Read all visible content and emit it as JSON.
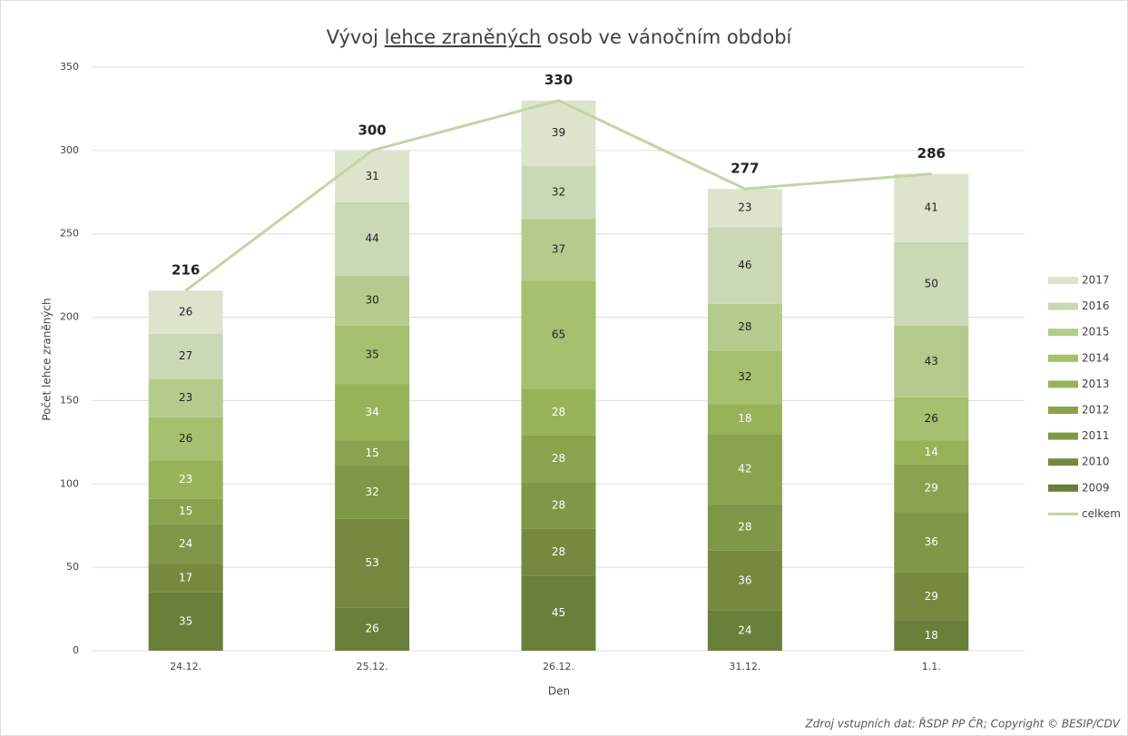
{
  "chart_data": {
    "type": "stacked-bar-line",
    "title": [
      "Vývoj ",
      "lehce zraněných",
      " osob ve vánočním období"
    ],
    "x_label": "Den",
    "y_label": "Počet lehce zraněných",
    "source": "Zdroj vstupních dat: ŘSDP PP ČR; Copyright © BESIP/CDV",
    "categories": [
      "24.12.",
      "25.12.",
      "26.12.",
      "31.12.",
      "1.1."
    ],
    "series": [
      {
        "name": "2009",
        "color": "#6a7f39",
        "label_color": "#ffffff",
        "values": [
          35,
          26,
          45,
          24,
          18
        ]
      },
      {
        "name": "2010",
        "color": "#76893f",
        "label_color": "#ffffff",
        "values": [
          17,
          53,
          28,
          36,
          29
        ]
      },
      {
        "name": "2011",
        "color": "#7f9747",
        "label_color": "#ffffff",
        "values": [
          24,
          32,
          28,
          28,
          36
        ]
      },
      {
        "name": "2012",
        "color": "#89a34f",
        "label_color": "#ffffff",
        "values": [
          15,
          15,
          28,
          42,
          29
        ]
      },
      {
        "name": "2013",
        "color": "#97b35a",
        "label_color": "#ffffff",
        "values": [
          23,
          34,
          28,
          18,
          14
        ]
      },
      {
        "name": "2014",
        "color": "#a5c06f",
        "label_color": "#222222",
        "values": [
          26,
          35,
          65,
          32,
          26
        ]
      },
      {
        "name": "2015",
        "color": "#b5cb8d",
        "label_color": "#222222",
        "values": [
          23,
          30,
          37,
          28,
          43
        ]
      },
      {
        "name": "2016",
        "color": "#cbd8b5",
        "label_color": "#222222",
        "values": [
          27,
          44,
          32,
          46,
          50
        ]
      },
      {
        "name": "2017",
        "color": "#dce5cc",
        "label_color": "#222222",
        "values": [
          26,
          31,
          39,
          23,
          41
        ]
      },
      {
        "name": "celkem",
        "type": "line",
        "color": "#c3d4a5",
        "values": [
          216,
          300,
          330,
          277,
          286
        ]
      }
    ],
    "ylim": [
      0,
      350
    ],
    "yticks": [
      0,
      50,
      100,
      150,
      200,
      250,
      300,
      350
    ],
    "grid": true,
    "legend": "right"
  }
}
